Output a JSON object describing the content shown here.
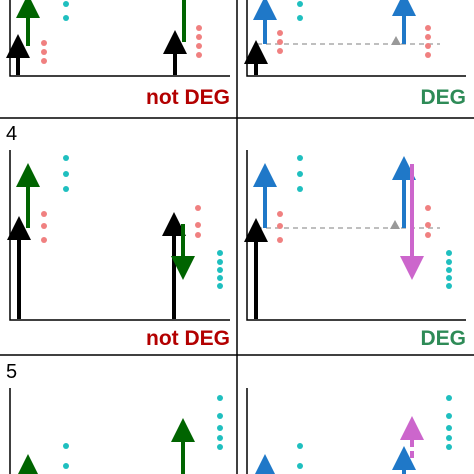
{
  "rows": [
    {
      "number": "",
      "left": {
        "label": "not DEG",
        "label_color": "#b30000"
      },
      "right": {
        "label": "DEG",
        "label_color": "#2e8b57"
      }
    },
    {
      "number": "4",
      "left": {
        "label": "not DEG",
        "label_color": "#b30000"
      },
      "right": {
        "label": "DEG",
        "label_color": "#2e8b57"
      }
    },
    {
      "number": "5",
      "left": {
        "label": "",
        "label_color": "#b30000"
      },
      "right": {
        "label": "",
        "label_color": "#2e8b57"
      }
    }
  ],
  "colors": {
    "black_arrow": "#000000",
    "green_arrow": "#006400",
    "blue_arrow": "#1f78c8",
    "purple_arrow": "#cc66cc",
    "salmon_dots": "#f08080",
    "teal_dots": "#1fbfbf",
    "gray_marker": "#999999",
    "panel_border": "#000000"
  }
}
